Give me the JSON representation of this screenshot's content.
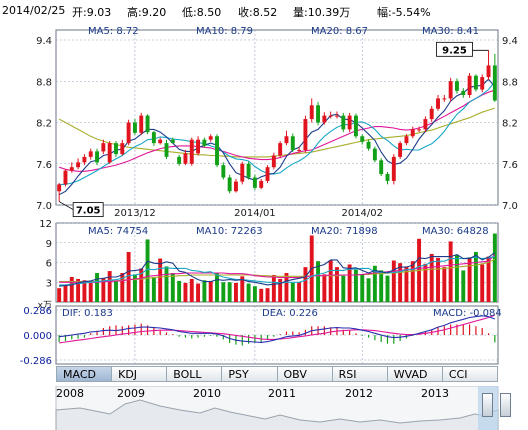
{
  "header": {
    "date": "2014/02/25",
    "open": "开:9.03",
    "high": "高:9.20",
    "low": "低:8.50",
    "close": "收:8.52",
    "volume": "量:10.39万",
    "change": "幅:-5.54%"
  },
  "colors": {
    "up": "#e0141e",
    "down": "#12a018",
    "ma5": "#1c3c8a",
    "ma10": "#1aa7c7",
    "ma20": "#e2169a",
    "ma30": "#a8ad2a",
    "grid": "#9aa4c0",
    "axis_text": "#0b1e9c"
  },
  "indicators": {
    "ma5": "MA5: 8.72",
    "ma10": "MA10: 8.79",
    "ma20": "MA20: 8.67",
    "ma30": "MA30: 8.41"
  },
  "markers": {
    "high_label": "9.25",
    "low_label": "7.05"
  },
  "vol_legend": {
    "ma5": "MA5: 74754",
    "ma10": "MA10: 72263",
    "ma20": "MA20: 71898",
    "ma30": "MA30: 64828"
  },
  "macd_legend": {
    "dif": "DIF: 0.183",
    "dea": "DEA: 0.226",
    "macd": "MACD: -0.084"
  },
  "vol_unit": "x万",
  "tabs": [
    "MACD",
    "KDJ",
    "BOLL",
    "PSY",
    "OBV",
    "RSI",
    "WVAD",
    "CCI"
  ],
  "active_tab": "MACD",
  "years": [
    "2008",
    "2009",
    "2010",
    "2011",
    "2012",
    "2013"
  ],
  "chart_data": [
    {
      "type": "candlestick",
      "ylim": [
        7.0,
        9.4
      ],
      "yticks": [
        "9.4",
        "8.8",
        "8.2",
        "7.6",
        "7.0"
      ],
      "yticks_right": [
        "9.4",
        "8.8",
        "8.2",
        "7.6",
        "7.0"
      ],
      "xticks": [
        {
          "label": "2013/12",
          "index": 12
        },
        {
          "label": "2014/01",
          "index": 31
        },
        {
          "label": "2014/02",
          "index": 48
        }
      ],
      "open": [
        7.2,
        7.3,
        7.5,
        7.55,
        7.62,
        7.7,
        7.78,
        7.78,
        7.62,
        7.9,
        7.74,
        7.9,
        8.2,
        8.05,
        8.3,
        8.06,
        7.9,
        7.9,
        7.95,
        7.7,
        7.6,
        7.6,
        7.75,
        7.95,
        7.95,
        8.0,
        7.58,
        7.4,
        7.2,
        7.34,
        7.6,
        7.4,
        7.25,
        7.35,
        7.55,
        7.72,
        7.9,
        8.0,
        7.8,
        7.8,
        8.25,
        8.45,
        8.2,
        8.3,
        8.3,
        8.3,
        8.1,
        8.3,
        8.0,
        7.92,
        7.82,
        7.65,
        7.45,
        7.35,
        7.7,
        7.9,
        8.0,
        8.1,
        8.1,
        8.25,
        8.4,
        8.55,
        8.55,
        8.8,
        8.66,
        8.6,
        8.88,
        8.68,
        8.86,
        9.03
      ],
      "close": [
        7.3,
        7.5,
        7.55,
        7.62,
        7.7,
        7.78,
        7.62,
        7.9,
        7.9,
        7.74,
        7.9,
        8.2,
        8.05,
        8.3,
        8.06,
        7.9,
        7.95,
        7.7,
        7.9,
        7.6,
        7.75,
        7.95,
        7.95,
        7.86,
        8.0,
        7.58,
        7.4,
        7.2,
        7.34,
        7.6,
        7.4,
        7.25,
        7.35,
        7.55,
        7.72,
        7.9,
        8.0,
        7.8,
        7.8,
        8.25,
        8.45,
        8.2,
        8.3,
        8.3,
        8.3,
        8.1,
        8.3,
        8.0,
        7.92,
        7.82,
        7.65,
        7.45,
        7.35,
        7.7,
        7.9,
        8.0,
        8.1,
        8.1,
        8.25,
        8.4,
        8.55,
        8.55,
        8.8,
        8.66,
        8.6,
        8.88,
        8.68,
        8.86,
        9.03,
        8.52
      ],
      "high": [
        7.32,
        7.52,
        7.62,
        7.68,
        7.74,
        7.82,
        7.82,
        7.95,
        7.93,
        7.93,
        7.95,
        8.24,
        8.25,
        8.34,
        8.32,
        8.08,
        7.98,
        7.95,
        7.98,
        7.73,
        7.8,
        7.98,
        8.0,
        7.98,
        8.03,
        8.03,
        7.62,
        7.44,
        7.38,
        7.63,
        7.63,
        7.44,
        7.38,
        7.58,
        7.76,
        7.93,
        8.08,
        8.04,
        7.84,
        8.3,
        8.55,
        8.5,
        8.35,
        8.36,
        8.36,
        8.34,
        8.34,
        8.33,
        8.03,
        7.95,
        7.85,
        7.68,
        7.48,
        7.74,
        7.93,
        8.03,
        8.14,
        8.14,
        8.29,
        8.44,
        8.6,
        8.6,
        8.85,
        8.84,
        8.7,
        8.92,
        8.9,
        8.9,
        9.25,
        9.2
      ],
      "low": [
        7.05,
        7.27,
        7.47,
        7.52,
        7.58,
        7.66,
        7.58,
        7.74,
        7.6,
        7.7,
        7.72,
        7.87,
        8.02,
        8.02,
        8.03,
        7.86,
        7.88,
        7.67,
        7.92,
        7.57,
        7.58,
        7.57,
        7.72,
        7.84,
        7.92,
        7.55,
        7.37,
        7.17,
        7.18,
        7.3,
        7.37,
        7.22,
        7.23,
        7.32,
        7.52,
        7.68,
        7.87,
        7.77,
        7.76,
        7.76,
        8.2,
        8.16,
        8.17,
        8.26,
        8.26,
        8.06,
        8.06,
        7.97,
        7.88,
        7.79,
        7.62,
        7.42,
        7.3,
        7.3,
        7.67,
        7.87,
        7.97,
        8.06,
        8.06,
        8.21,
        8.37,
        8.5,
        8.5,
        8.62,
        8.56,
        8.56,
        8.65,
        8.64,
        8.82,
        8.5
      ],
      "ma5": [
        7.15,
        7.2,
        7.3,
        7.42,
        7.53,
        7.63,
        7.65,
        7.72,
        7.74,
        7.8,
        7.81,
        7.93,
        7.96,
        8.03,
        8.1,
        8.1,
        8.06,
        7.99,
        7.9,
        7.81,
        7.78,
        7.78,
        7.83,
        7.87,
        7.9,
        7.87,
        7.76,
        7.6,
        7.47,
        7.43,
        7.39,
        7.36,
        7.41,
        7.44,
        7.46,
        7.55,
        7.71,
        7.8,
        7.84,
        7.95,
        8.06,
        8.1,
        8.2,
        8.3,
        8.32,
        8.25,
        8.24,
        8.2,
        8.12,
        8.03,
        7.94,
        7.77,
        7.64,
        7.59,
        7.61,
        7.68,
        7.81,
        7.96,
        8.07,
        8.17,
        8.28,
        8.37,
        8.51,
        8.59,
        8.63,
        8.71,
        8.73,
        8.74,
        8.83,
        8.72
      ],
      "ma10": [
        7.3,
        7.3,
        7.32,
        7.35,
        7.4,
        7.45,
        7.5,
        7.56,
        7.62,
        7.67,
        7.72,
        7.79,
        7.85,
        7.89,
        7.95,
        7.96,
        7.99,
        7.98,
        7.96,
        7.95,
        7.94,
        7.92,
        7.91,
        7.89,
        7.86,
        7.83,
        7.77,
        7.71,
        7.67,
        7.66,
        7.64,
        7.56,
        7.5,
        7.46,
        7.45,
        7.47,
        7.54,
        7.6,
        7.64,
        7.7,
        7.78,
        7.9,
        8.0,
        8.07,
        8.13,
        8.17,
        8.17,
        8.2,
        8.21,
        8.17,
        8.1,
        8.0,
        7.94,
        7.86,
        7.8,
        7.81,
        7.8,
        7.8,
        7.85,
        7.89,
        7.97,
        8.07,
        8.2,
        8.32,
        8.4,
        8.5,
        8.55,
        8.61,
        8.68,
        8.79
      ],
      "ma20": [
        7.55,
        7.52,
        7.5,
        7.49,
        7.49,
        7.5,
        7.52,
        7.54,
        7.56,
        7.58,
        7.61,
        7.64,
        7.68,
        7.72,
        7.76,
        7.79,
        7.82,
        7.84,
        7.85,
        7.86,
        7.86,
        7.86,
        7.85,
        7.84,
        7.83,
        7.8,
        7.78,
        7.75,
        7.72,
        7.7,
        7.68,
        7.67,
        7.66,
        7.66,
        7.67,
        7.69,
        7.72,
        7.75,
        7.77,
        7.79,
        7.8,
        7.84,
        7.88,
        7.92,
        7.96,
        8.0,
        8.04,
        8.08,
        8.1,
        8.12,
        8.14,
        8.14,
        8.13,
        8.12,
        8.1,
        8.09,
        8.1,
        8.12,
        8.15,
        8.19,
        8.24,
        8.29,
        8.34,
        8.39,
        8.44,
        8.5,
        8.55,
        8.6,
        8.64,
        8.67
      ],
      "ma30": [
        8.25,
        8.2,
        8.15,
        8.1,
        8.05,
        8.0,
        7.96,
        7.93,
        7.9,
        7.88,
        7.86,
        7.84,
        7.83,
        7.82,
        7.81,
        7.8,
        7.79,
        7.78,
        7.77,
        7.76,
        7.75,
        7.74,
        7.73,
        7.73,
        7.72,
        7.72,
        7.71,
        7.71,
        7.7,
        7.7,
        7.7,
        7.7,
        7.7,
        7.7,
        7.71,
        7.72,
        7.73,
        7.74,
        7.75,
        7.76,
        7.77,
        7.79,
        7.81,
        7.83,
        7.85,
        7.87,
        7.89,
        7.91,
        7.93,
        7.95,
        7.96,
        7.97,
        7.98,
        7.99,
        8.0,
        8.01,
        8.03,
        8.05,
        8.07,
        8.09,
        8.12,
        8.15,
        8.18,
        8.21,
        8.24,
        8.27,
        8.31,
        8.35,
        8.38,
        8.41
      ]
    },
    {
      "type": "bar",
      "name": "volume",
      "ylim": [
        0,
        12
      ],
      "yticks": [
        "12",
        "9",
        "6",
        "3"
      ],
      "values": [
        2.1,
        2.6,
        3.8,
        3.5,
        3.3,
        2.9,
        4.4,
        3.6,
        4.7,
        3.2,
        4.4,
        7.6,
        4.2,
        5.1,
        9.5,
        3.8,
        6.6,
        5.4,
        4.4,
        3.2,
        2.9,
        3.5,
        2.8,
        3.3,
        3.2,
        4.4,
        3.0,
        3.0,
        2.9,
        3.9,
        2.8,
        2.4,
        2.0,
        2.1,
        4.1,
        3.5,
        4.4,
        2.9,
        3.0,
        5.3,
        10.1,
        6.2,
        4.2,
        6.3,
        5.3,
        4.0,
        5.7,
        4.9,
        4.1,
        3.6,
        5.5,
        4.8,
        4.0,
        6.3,
        5.9,
        5.4,
        6.2,
        9.6,
        5.8,
        7.3,
        6.7,
        5.3,
        9.2,
        7.1,
        4.8,
        6.8,
        7.6,
        5.7,
        6.9,
        10.4
      ],
      "ma5": [
        2.4,
        2.5,
        2.6,
        2.9,
        3.1,
        3.2,
        3.5,
        3.6,
        3.8,
        3.8,
        4.1,
        4.7,
        4.8,
        4.9,
        6.2,
        5.9,
        5.8,
        6.1,
        5.9,
        4.7,
        4.5,
        3.9,
        3.4,
        3.1,
        3.1,
        3.4,
        3.3,
        3.4,
        3.3,
        3.4,
        3.1,
        3.0,
        2.8,
        2.6,
        2.7,
        2.8,
        3.2,
        3.4,
        3.6,
        3.8,
        5.1,
        5.4,
        5.7,
        6.4,
        6.4,
        5.2,
        5.1,
        5.2,
        4.8,
        4.4,
        4.8,
        4.6,
        4.4,
        4.9,
        5.3,
        5.3,
        5.6,
        6.7,
        6.6,
        6.9,
        6.9,
        6.9,
        6.9,
        7.2,
        6.6,
        6.6,
        7.1,
        6.4,
        6.8,
        7.5
      ],
      "ma10": [
        2.6,
        2.6,
        2.7,
        2.8,
        2.9,
        3.0,
        3.1,
        3.2,
        3.3,
        3.4,
        3.6,
        4.0,
        4.1,
        4.3,
        5.0,
        4.9,
        5.1,
        5.2,
        5.1,
        5.1,
        5.1,
        4.8,
        4.7,
        4.5,
        4.6,
        4.1,
        3.8,
        3.6,
        3.4,
        3.4,
        3.3,
        3.2,
        3.1,
        3.0,
        3.0,
        2.9,
        3.0,
        3.0,
        3.0,
        3.3,
        3.9,
        4.2,
        4.4,
        4.8,
        4.8,
        4.8,
        5.0,
        5.0,
        5.1,
        5.1,
        4.6,
        4.5,
        4.5,
        4.5,
        4.6,
        4.9,
        4.9,
        5.4,
        5.6,
        6.1,
        6.2,
        6.2,
        6.6,
        6.6,
        6.6,
        6.7,
        6.8,
        6.6,
        6.7,
        6.9
      ],
      "ma20": [
        3.0,
        3.0,
        3.0,
        3.0,
        3.0,
        3.0,
        3.0,
        3.1,
        3.1,
        3.2,
        3.2,
        3.4,
        3.5,
        3.6,
        3.9,
        4.0,
        4.1,
        4.2,
        4.3,
        4.3,
        4.4,
        4.4,
        4.4,
        4.4,
        4.4,
        4.4,
        4.4,
        4.3,
        4.3,
        4.3,
        4.2,
        4.0,
        3.9,
        3.8,
        3.8,
        3.7,
        3.7,
        3.7,
        3.7,
        3.8,
        4.0,
        4.0,
        4.0,
        4.1,
        4.1,
        4.1,
        4.1,
        4.1,
        4.2,
        4.3,
        4.4,
        4.5,
        4.6,
        4.7,
        4.8,
        4.9,
        5.0,
        5.1,
        5.2,
        5.3,
        5.4,
        5.5,
        5.6,
        5.7,
        5.8,
        5.9,
        6.0,
        6.1,
        6.2,
        7.2
      ],
      "ma30": [
        3.1,
        3.1,
        3.1,
        3.1,
        3.1,
        3.1,
        3.1,
        3.2,
        3.2,
        3.2,
        3.3,
        3.4,
        3.4,
        3.5,
        3.6,
        3.7,
        3.8,
        3.9,
        3.9,
        4.0,
        4.0,
        4.1,
        4.1,
        4.1,
        4.1,
        4.1,
        4.1,
        4.1,
        4.1,
        4.1,
        4.1,
        4.1,
        4.0,
        4.0,
        3.9,
        3.9,
        3.9,
        3.9,
        3.9,
        3.9,
        4.0,
        4.0,
        4.0,
        4.0,
        4.0,
        4.1,
        4.1,
        4.1,
        4.2,
        4.2,
        4.3,
        4.3,
        4.4,
        4.4,
        4.5,
        4.6,
        4.7,
        4.8,
        4.9,
        5.0,
        5.0,
        5.1,
        5.2,
        5.3,
        5.4,
        5.5,
        5.6,
        5.8,
        6.0,
        6.5
      ]
    },
    {
      "type": "line",
      "name": "MACD",
      "ylim": [
        -0.286,
        0.286
      ],
      "yticks": [
        "0.286",
        "0.000",
        "-0.286"
      ],
      "dif": [
        -0.02,
        -0.01,
        0.0,
        0.01,
        0.02,
        0.035,
        0.04,
        0.05,
        0.055,
        0.05,
        0.06,
        0.075,
        0.08,
        0.09,
        0.09,
        0.085,
        0.08,
        0.07,
        0.06,
        0.04,
        0.03,
        0.02,
        0.02,
        0.02,
        0.02,
        0.01,
        -0.01,
        -0.04,
        -0.06,
        -0.07,
        -0.075,
        -0.08,
        -0.085,
        -0.075,
        -0.06,
        -0.04,
        -0.02,
        -0.01,
        -0.005,
        0.02,
        0.05,
        0.06,
        0.07,
        0.08,
        0.085,
        0.08,
        0.08,
        0.07,
        0.055,
        0.04,
        0.02,
        0.0,
        -0.02,
        -0.03,
        -0.025,
        -0.015,
        0.0,
        0.02,
        0.04,
        0.06,
        0.09,
        0.11,
        0.14,
        0.16,
        0.18,
        0.2,
        0.21,
        0.22,
        0.21,
        0.183
      ],
      "dea": [
        -0.09,
        -0.08,
        -0.07,
        -0.06,
        -0.05,
        -0.04,
        -0.03,
        -0.02,
        -0.01,
        0.0,
        0.01,
        0.02,
        0.03,
        0.04,
        0.045,
        0.05,
        0.055,
        0.055,
        0.055,
        0.05,
        0.045,
        0.04,
        0.035,
        0.03,
        0.025,
        0.02,
        0.015,
        0.005,
        -0.005,
        -0.015,
        -0.025,
        -0.035,
        -0.045,
        -0.05,
        -0.05,
        -0.045,
        -0.04,
        -0.03,
        -0.02,
        -0.01,
        0.0,
        0.01,
        0.02,
        0.035,
        0.045,
        0.05,
        0.055,
        0.06,
        0.06,
        0.055,
        0.05,
        0.04,
        0.03,
        0.02,
        0.01,
        0.005,
        0.005,
        0.01,
        0.02,
        0.03,
        0.045,
        0.06,
        0.08,
        0.1,
        0.12,
        0.14,
        0.16,
        0.18,
        0.2,
        0.226
      ],
      "hist": [
        -0.08,
        -0.07,
        -0.05,
        -0.04,
        -0.03,
        0.02,
        0.05,
        0.08,
        0.1,
        0.11,
        0.1,
        0.11,
        0.12,
        0.13,
        0.11,
        0.08,
        0.05,
        0.03,
        0.01,
        -0.02,
        -0.03,
        -0.04,
        -0.03,
        -0.02,
        -0.01,
        -0.02,
        -0.05,
        -0.09,
        -0.11,
        -0.12,
        -0.1,
        -0.09,
        -0.08,
        -0.05,
        -0.02,
        0.01,
        0.04,
        0.04,
        0.03,
        0.06,
        0.1,
        0.1,
        0.1,
        0.09,
        0.08,
        0.06,
        0.05,
        0.02,
        -0.01,
        -0.03,
        -0.06,
        -0.08,
        -0.1,
        -0.1,
        -0.07,
        -0.04,
        -0.01,
        0.02,
        0.04,
        0.06,
        0.09,
        0.1,
        0.12,
        0.12,
        0.12,
        0.12,
        0.1,
        0.08,
        0.02,
        -0.084
      ]
    }
  ]
}
